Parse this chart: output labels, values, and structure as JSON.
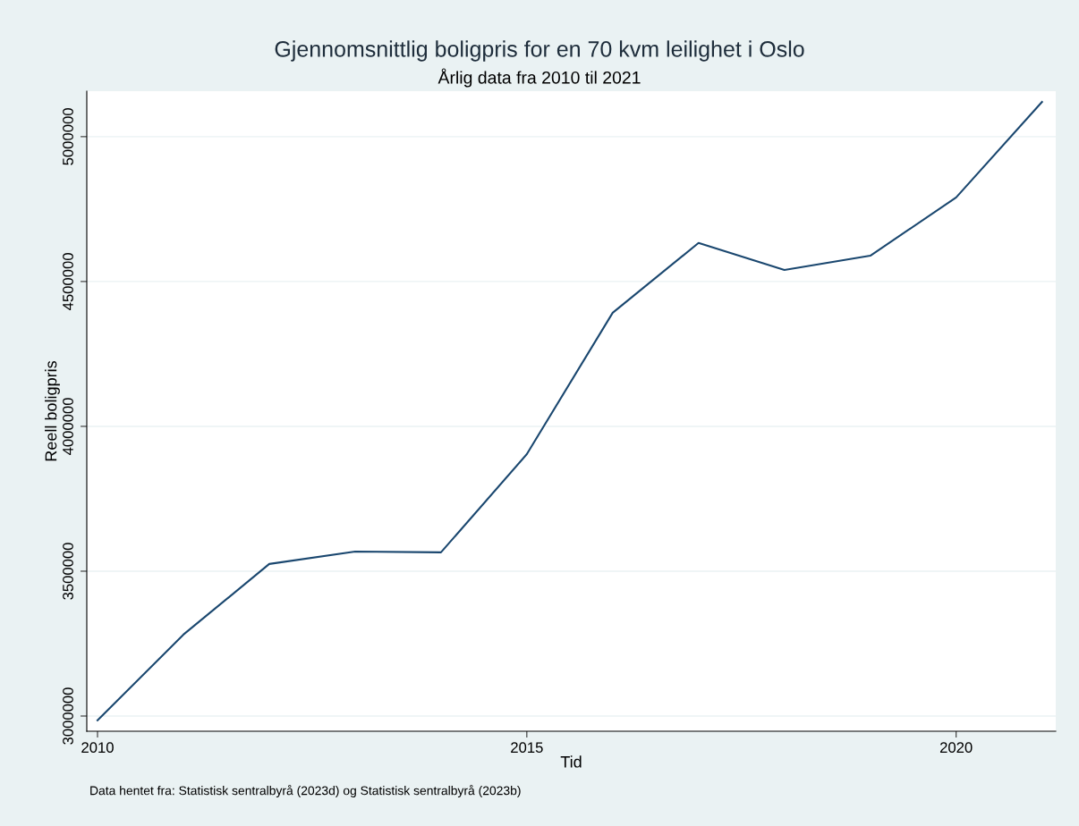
{
  "chart_data": {
    "type": "line",
    "title": "Gjennomsnittlig boligpris for en 70 kvm leilighet i Oslo",
    "subtitle": "Årlig data fra 2010 til 2021",
    "xlabel": "Tid",
    "ylabel": "Reell boligpris",
    "x": [
      2010,
      2011,
      2012,
      2013,
      2014,
      2015,
      2016,
      2017,
      2018,
      2019,
      2020,
      2021
    ],
    "series": [
      {
        "color": "#1a476f",
        "values": [
          2985000,
          3281000,
          3525000,
          3568000,
          3565000,
          3904000,
          4392000,
          4633000,
          4540000,
          4589000,
          4790000,
          5120000
        ]
      }
    ],
    "xlim": [
      2009.875,
      2021.16
    ],
    "xticks": [
      2010,
      2015,
      2020
    ],
    "ylim": [
      2947500,
      5157000
    ],
    "yticks": [
      3000000,
      3500000,
      4000000,
      4500000,
      5000000
    ],
    "grid": "y",
    "legend": false,
    "marker": "none",
    "line_style": "solid",
    "annotations": [
      "Data hentet fra: Statistisk sentralbyrå (2023d) og Statistisk sentralbyrå (2023b)"
    ]
  }
}
